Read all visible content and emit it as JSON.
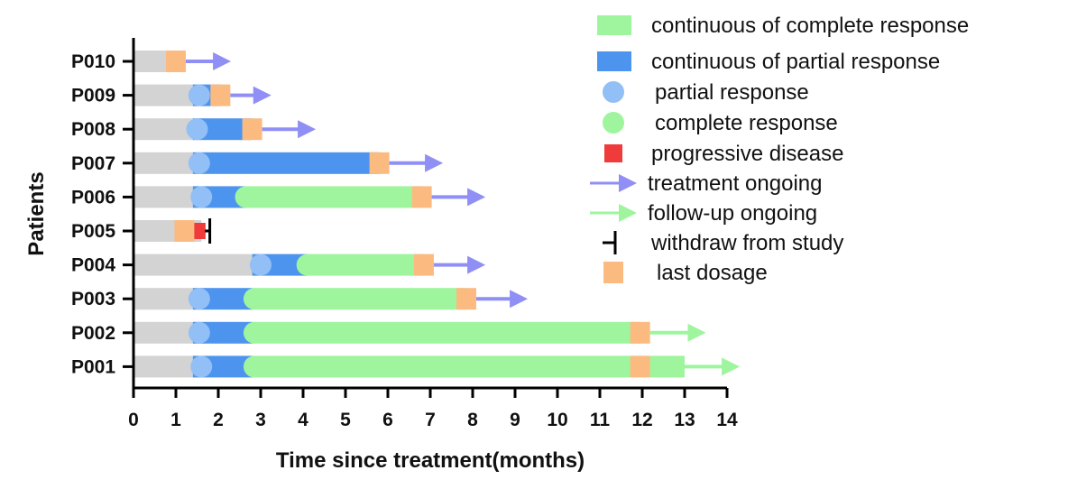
{
  "chart_data": {
    "type": "swimmer",
    "title": "",
    "xlabel": "Time since treatment(months)",
    "ylabel": "Patients",
    "xlim": [
      0,
      14
    ],
    "xticks": [
      "0",
      "1",
      "2",
      "3",
      "4",
      "5",
      "6",
      "7",
      "8",
      "9",
      "10",
      "11",
      "12",
      "13",
      "14"
    ],
    "colors": {
      "baseline": "#d3d3d3",
      "partial": "#4d94ee",
      "complete": "#9ef59e",
      "pr_marker": "#92bff5",
      "cr_marker": "#9ef59e",
      "pd": "#ef3b3b",
      "last_dose": "#fbbb80",
      "treat_arrow": "#8f8ff5",
      "follow_arrow": "#9ef59e",
      "withdraw": "#000000"
    },
    "patients": [
      {
        "id": "P010",
        "segments": [
          {
            "type": "baseline",
            "start": 0,
            "end": 0.8
          }
        ],
        "pr": null,
        "cr": null,
        "pd": null,
        "last_dose": 1.0,
        "end": 1.0,
        "arrow": {
          "type": "treatment",
          "end": 2.3
        },
        "withdraw": null
      },
      {
        "id": "P009",
        "segments": [
          {
            "type": "baseline",
            "start": 0,
            "end": 1.4
          },
          {
            "type": "partial",
            "start": 1.4,
            "end": 2.05
          }
        ],
        "pr": 1.55,
        "cr": null,
        "pd": null,
        "last_dose": 2.05,
        "end": 2.05,
        "arrow": {
          "type": "treatment",
          "end": 3.25
        },
        "withdraw": null
      },
      {
        "id": "P008",
        "segments": [
          {
            "type": "baseline",
            "start": 0,
            "end": 1.4
          },
          {
            "type": "partial",
            "start": 1.4,
            "end": 2.8
          }
        ],
        "pr": 1.5,
        "cr": null,
        "pd": null,
        "last_dose": 2.8,
        "end": 2.8,
        "arrow": {
          "type": "treatment",
          "end": 4.3
        },
        "withdraw": null
      },
      {
        "id": "P007",
        "segments": [
          {
            "type": "baseline",
            "start": 0,
            "end": 1.4
          },
          {
            "type": "partial",
            "start": 1.4,
            "end": 5.8
          }
        ],
        "pr": 1.55,
        "cr": null,
        "pd": null,
        "last_dose": 5.8,
        "end": 5.8,
        "arrow": {
          "type": "treatment",
          "end": 7.3
        },
        "withdraw": null
      },
      {
        "id": "P006",
        "segments": [
          {
            "type": "baseline",
            "start": 0,
            "end": 1.4
          },
          {
            "type": "partial",
            "start": 1.4,
            "end": 2.65
          },
          {
            "type": "complete",
            "start": 2.65,
            "end": 6.8
          }
        ],
        "pr": 1.6,
        "cr": 2.65,
        "pd": null,
        "last_dose": 6.8,
        "end": 6.8,
        "arrow": {
          "type": "treatment",
          "end": 8.3
        },
        "withdraw": null
      },
      {
        "id": "P005",
        "segments": [
          {
            "type": "baseline",
            "start": 0,
            "end": 1.0
          }
        ],
        "pr": null,
        "cr": null,
        "pd": 1.55,
        "last_dose": 1.2,
        "end": 1.6,
        "arrow": null,
        "withdraw": 1.8
      },
      {
        "id": "P004",
        "segments": [
          {
            "type": "baseline",
            "start": 0,
            "end": 2.8
          },
          {
            "type": "partial",
            "start": 2.8,
            "end": 4.1
          },
          {
            "type": "complete",
            "start": 4.1,
            "end": 6.85
          }
        ],
        "pr": 3.0,
        "cr": 4.1,
        "pd": null,
        "last_dose": 6.85,
        "end": 6.85,
        "arrow": {
          "type": "treatment",
          "end": 8.3
        },
        "withdraw": null
      },
      {
        "id": "P003",
        "segments": [
          {
            "type": "baseline",
            "start": 0,
            "end": 1.4
          },
          {
            "type": "partial",
            "start": 1.4,
            "end": 2.8
          },
          {
            "type": "complete",
            "start": 2.8,
            "end": 7.85
          }
        ],
        "pr": 1.55,
        "cr": 2.85,
        "pd": null,
        "last_dose": 7.85,
        "end": 7.85,
        "arrow": {
          "type": "treatment",
          "end": 9.3
        },
        "withdraw": null
      },
      {
        "id": "P002",
        "segments": [
          {
            "type": "baseline",
            "start": 0,
            "end": 1.4
          },
          {
            "type": "partial",
            "start": 1.4,
            "end": 2.8
          },
          {
            "type": "complete",
            "start": 2.8,
            "end": 11.95
          }
        ],
        "pr": 1.55,
        "cr": 2.85,
        "pd": null,
        "last_dose": 11.95,
        "end": 11.95,
        "arrow": {
          "type": "follow-up",
          "end": 13.5
        },
        "withdraw": null
      },
      {
        "id": "P001",
        "segments": [
          {
            "type": "baseline",
            "start": 0,
            "end": 1.4
          },
          {
            "type": "partial",
            "start": 1.4,
            "end": 2.8
          },
          {
            "type": "complete",
            "start": 2.8,
            "end": 13.0
          }
        ],
        "pr": 1.6,
        "cr": 2.85,
        "pd": null,
        "last_dose": 11.95,
        "end": 13.0,
        "arrow": {
          "type": "follow-up",
          "end": 14.3
        },
        "withdraw": null
      }
    ],
    "legend": [
      {
        "key": "complete_bar",
        "label": "continuous of complete response"
      },
      {
        "key": "partial_bar",
        "label": "continuous of partial response"
      },
      {
        "key": "pr_dot",
        "label": "partial response"
      },
      {
        "key": "cr_dot",
        "label": "complete response"
      },
      {
        "key": "pd_square",
        "label": "progressive disease"
      },
      {
        "key": "treat_arrow",
        "label": "treatment ongoing"
      },
      {
        "key": "follow_arrow",
        "label": "follow-up ongoing"
      },
      {
        "key": "withdraw",
        "label": "withdraw from study"
      },
      {
        "key": "last_dose",
        "label": "last dosage"
      }
    ]
  }
}
